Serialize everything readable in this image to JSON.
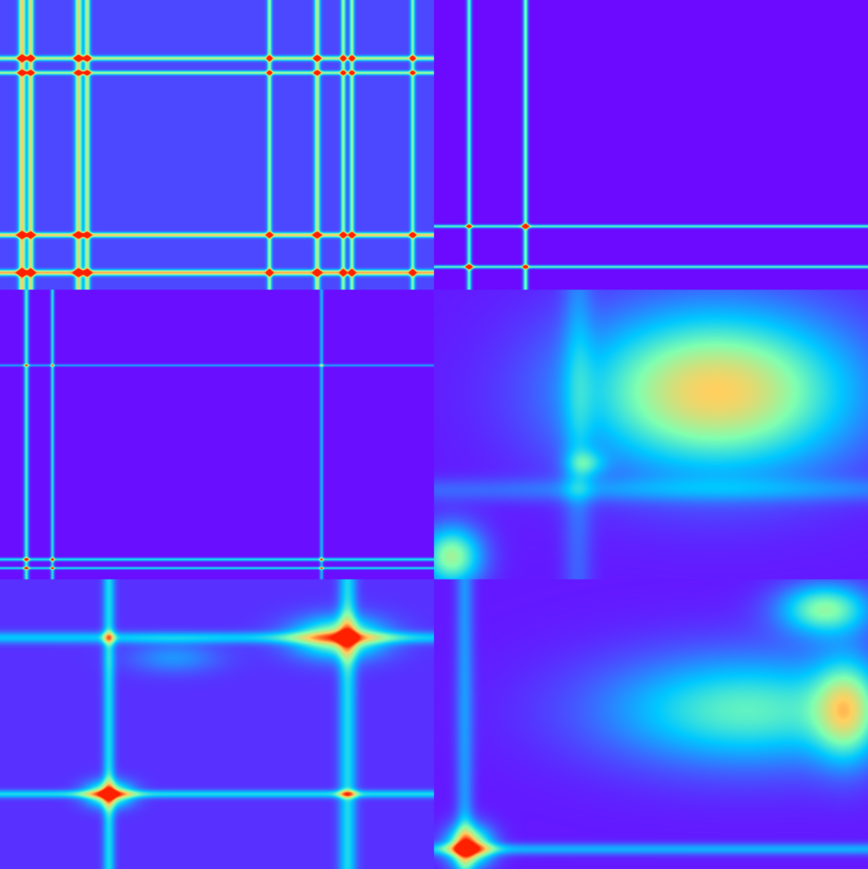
{
  "colormap": {
    "name": "rainbow",
    "stops": [
      "#7000ff",
      "#4060ff",
      "#00c8ff",
      "#80ffb0",
      "#ffd060",
      "#ff2000"
    ]
  },
  "chart_data": [
    {
      "type": "heatmap",
      "panel": "top-left",
      "base_level": 0.15,
      "lines": [
        {
          "pos": 0.05,
          "w": 0.006,
          "a": 0.65
        },
        {
          "pos": 0.07,
          "w": 0.005,
          "a": 0.6
        },
        {
          "pos": 0.18,
          "w": 0.006,
          "a": 0.6
        },
        {
          "pos": 0.2,
          "w": 0.005,
          "a": 0.55
        },
        {
          "pos": 0.62,
          "w": 0.004,
          "a": 0.5
        },
        {
          "pos": 0.73,
          "w": 0.005,
          "a": 0.55
        },
        {
          "pos": 0.79,
          "w": 0.004,
          "a": 0.5
        },
        {
          "pos": 0.81,
          "w": 0.004,
          "a": 0.5
        },
        {
          "pos": 0.95,
          "w": 0.004,
          "a": 0.45
        }
      ],
      "hlines": [
        {
          "pos": 0.2,
          "w": 0.006,
          "a": 0.55
        },
        {
          "pos": 0.25,
          "w": 0.005,
          "a": 0.5
        },
        {
          "pos": 0.81,
          "w": 0.006,
          "a": 0.65
        },
        {
          "pos": 0.94,
          "w": 0.007,
          "a": 0.7
        }
      ],
      "blobs": []
    },
    {
      "type": "heatmap",
      "panel": "top-right",
      "base_level": 0.02,
      "lines": [
        {
          "pos": 0.08,
          "w": 0.004,
          "a": 0.55
        },
        {
          "pos": 0.21,
          "w": 0.004,
          "a": 0.6
        }
      ],
      "hlines": [
        {
          "pos": 0.78,
          "w": 0.004,
          "a": 0.55
        },
        {
          "pos": 0.92,
          "w": 0.004,
          "a": 0.55
        }
      ],
      "blobs": [
        {
          "x": 0.08,
          "y": 0.92,
          "rx": 0.01,
          "ry": 0.01,
          "a": 0.5
        },
        {
          "x": 0.21,
          "y": 0.78,
          "rx": 0.01,
          "ry": 0.01,
          "a": 0.45
        }
      ]
    },
    {
      "type": "heatmap",
      "panel": "middle-left",
      "base_level": 0.03,
      "lines": [
        {
          "pos": 0.06,
          "w": 0.004,
          "a": 0.5
        },
        {
          "pos": 0.12,
          "w": 0.003,
          "a": 0.45
        },
        {
          "pos": 0.74,
          "w": 0.003,
          "a": 0.35
        }
      ],
      "hlines": [
        {
          "pos": 0.26,
          "w": 0.003,
          "a": 0.3
        },
        {
          "pos": 0.93,
          "w": 0.004,
          "a": 0.45
        },
        {
          "pos": 0.96,
          "w": 0.003,
          "a": 0.45
        }
      ],
      "blobs": []
    },
    {
      "type": "heatmap",
      "panel": "middle-right",
      "base_level": 0.05,
      "lines": [
        {
          "pos": 0.33,
          "w": 0.025,
          "a": 0.15
        }
      ],
      "hlines": [
        {
          "pos": 0.69,
          "w": 0.03,
          "a": 0.15
        }
      ],
      "blobs": [
        {
          "x": 0.65,
          "y": 0.35,
          "rx": 0.36,
          "ry": 0.32,
          "a": 0.75
        },
        {
          "x": 0.35,
          "y": 0.6,
          "rx": 0.05,
          "ry": 0.05,
          "a": 0.25
        },
        {
          "x": 0.04,
          "y": 0.92,
          "rx": 0.08,
          "ry": 0.12,
          "a": 0.6
        }
      ]
    },
    {
      "type": "heatmap",
      "panel": "bottom-left",
      "base_level": 0.1,
      "lines": [
        {
          "pos": 0.25,
          "w": 0.01,
          "a": 0.35
        },
        {
          "pos": 0.8,
          "w": 0.015,
          "a": 0.35
        }
      ],
      "hlines": [
        {
          "pos": 0.2,
          "w": 0.015,
          "a": 0.3
        },
        {
          "pos": 0.74,
          "w": 0.01,
          "a": 0.35
        }
      ],
      "blobs": [
        {
          "x": 0.78,
          "y": 0.2,
          "rx": 0.12,
          "ry": 0.08,
          "a": 0.6
        },
        {
          "x": 0.25,
          "y": 0.74,
          "rx": 0.06,
          "ry": 0.05,
          "a": 0.65
        },
        {
          "x": 0.4,
          "y": 0.27,
          "rx": 0.12,
          "ry": 0.06,
          "a": 0.2
        }
      ]
    },
    {
      "type": "heatmap",
      "panel": "bottom-right",
      "base_level": 0.05,
      "lines": [
        {
          "pos": 0.07,
          "w": 0.015,
          "a": 0.25
        }
      ],
      "hlines": [
        {
          "pos": 0.93,
          "w": 0.015,
          "a": 0.3
        }
      ],
      "blobs": [
        {
          "x": 0.72,
          "y": 0.45,
          "rx": 0.38,
          "ry": 0.22,
          "a": 0.5
        },
        {
          "x": 0.9,
          "y": 0.1,
          "rx": 0.12,
          "ry": 0.1,
          "a": 0.55
        },
        {
          "x": 0.95,
          "y": 0.45,
          "rx": 0.08,
          "ry": 0.2,
          "a": 0.45
        },
        {
          "x": 0.08,
          "y": 0.92,
          "rx": 0.06,
          "ry": 0.08,
          "a": 0.75
        }
      ]
    }
  ]
}
